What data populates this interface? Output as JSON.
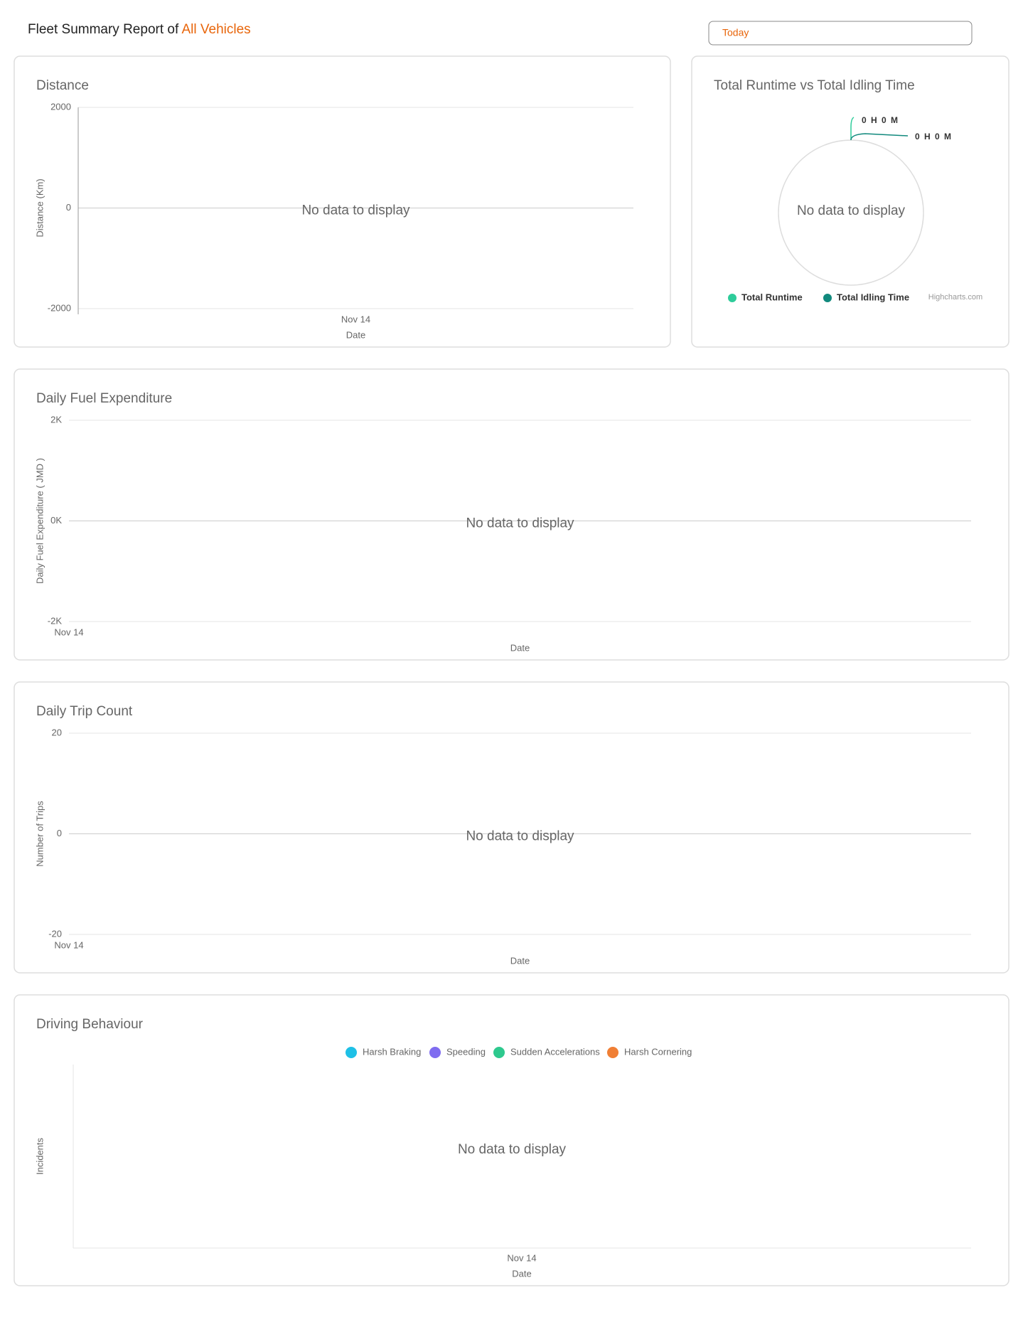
{
  "header": {
    "title": "Fleet Summary Report of",
    "highlight": "All Vehicles",
    "date_filter": "Today"
  },
  "panels": [
    {
      "type": "line",
      "title": "Distance",
      "ylabel": "Distance (Km)",
      "xlabel": "Date",
      "categories": [
        "Nov 14"
      ],
      "ylim": [
        -2000,
        2000
      ],
      "yticks": [
        -2000,
        0,
        2000
      ],
      "y_axis_line": true,
      "no_data": "No data to display"
    },
    {
      "type": "pie",
      "title": "Total Runtime vs Total Idling Time",
      "no_data": "No data to display",
      "credit": "Highcharts.com",
      "slices": [
        {
          "name": "Total Runtime",
          "color": "#2ecc9a",
          "label": "0 H 0 M"
        },
        {
          "name": "Total Idling Time",
          "color": "#11897d",
          "label": "0 H 0 M"
        }
      ]
    },
    {
      "type": "line",
      "title": "Daily Fuel Expenditure",
      "ylabel": "Daily Fuel Expenditure ( JMD )",
      "xlabel": "Date",
      "categories": [
        "Nov 14"
      ],
      "ylim": [
        -2000,
        2000
      ],
      "yticks": [
        {
          "value": -2000,
          "label": "-2K"
        },
        {
          "value": 0,
          "label": "0K"
        },
        {
          "value": 2000,
          "label": "2K"
        }
      ],
      "no_data": "No data to display"
    },
    {
      "type": "line",
      "title": "Daily Trip Count",
      "ylabel": "Number of Trips",
      "xlabel": "Date",
      "categories": [
        "Nov 14"
      ],
      "ylim": [
        -20,
        20
      ],
      "yticks": [
        -20,
        0,
        20
      ],
      "no_data": "No data to display"
    },
    {
      "type": "bar",
      "title": "Driving Behaviour",
      "ylabel": "Incidents",
      "xlabel": "Date",
      "categories": [
        "Nov 14"
      ],
      "series": [
        {
          "name": "Harsh Braking",
          "color": "#1ec0e6"
        },
        {
          "name": "Speeding",
          "color": "#7f6cf0"
        },
        {
          "name": "Sudden Accelerations",
          "color": "#2ec98e"
        },
        {
          "name": "Harsh Cornering",
          "color": "#f07f35"
        }
      ],
      "no_data": "No data to display"
    }
  ]
}
